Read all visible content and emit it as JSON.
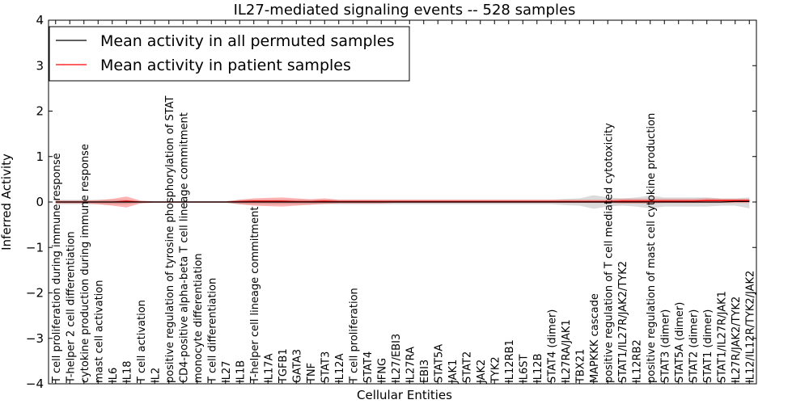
{
  "chart_data": {
    "type": "line",
    "title": "IL27-mediated signaling events -- 528 samples",
    "xlabel": "Cellular Entities",
    "ylabel": "Inferred Activity",
    "ylim": [
      -4,
      4
    ],
    "yticks": [
      -4,
      -3,
      -2,
      -1,
      0,
      1,
      2,
      3,
      4
    ],
    "legend_position": "upper-left",
    "categories": [
      "T cell proliferation during immune response",
      "T-helper 2 cell differentiation",
      "cytokine production during immune response",
      "mast cell activation",
      "IL6",
      "IL18",
      "T cell activation",
      "IL2",
      "positive regulation of tyrosine phosphorylation of STAT",
      "CD4-positive alpha-beta T cell lineage commitment",
      "monocyte differentiation",
      "T cell differentiation",
      "IL27",
      "IL1B",
      "T-helper cell lineage commitment",
      "IL17A",
      "TGFB1",
      "GATA3",
      "TNF",
      "STAT3",
      "IL12A",
      "T cell proliferation",
      "STAT4",
      "IFNG",
      "IL27/EBI3",
      "IL27RA",
      "EBI3",
      "STAT5A",
      "JAK1",
      "STAT2",
      "JAK2",
      "TYK2",
      "IL12RB1",
      "IL6ST",
      "IL12B",
      "STAT4 (dimer)",
      "IL27RA/JAK1",
      "TBX21",
      "MAPKKK cascade",
      "positive regulation of T cell mediated cytotoxicity",
      "STAT1/IL27R/JAK2/TYK2",
      "IL12RB2",
      "positive regulation of mast cell cytokine production",
      "STAT3 (dimer)",
      "STAT5A (dimer)",
      "STAT2 (dimer)",
      "STAT1 (dimer)",
      "STAT1/IL27R/JAK1",
      "IL27R/JAK2/TYK2",
      "IL12/IL12R/TYK2/JAK2"
    ],
    "series": [
      {
        "name": "Mean activity in all permuted samples",
        "color": "#000000",
        "values": [
          0,
          0,
          0,
          0,
          0,
          0,
          0,
          0,
          0,
          0,
          0,
          0,
          0,
          0,
          0,
          0,
          0,
          0,
          0,
          0,
          0,
          0,
          0,
          0,
          0,
          0,
          0,
          0,
          0,
          0,
          0,
          0,
          0,
          0,
          0,
          0,
          0,
          0,
          0,
          0,
          0,
          0,
          0,
          0,
          0,
          0,
          0,
          0,
          0.01,
          0.01
        ],
        "band_upper": [
          0.05,
          0.05,
          0.05,
          0.05,
          0.05,
          0.05,
          0.02,
          0.02,
          0.02,
          0.02,
          0.02,
          0.02,
          0.02,
          0.05,
          0.05,
          0.05,
          0.05,
          0.05,
          0.05,
          0.05,
          0.05,
          0.05,
          0.05,
          0.05,
          0.05,
          0.05,
          0.05,
          0.05,
          0.05,
          0.05,
          0.05,
          0.05,
          0.05,
          0.05,
          0.05,
          0.05,
          0.07,
          0.08,
          0.15,
          0.1,
          0.08,
          0.1,
          0.14,
          0.1,
          0.1,
          0.1,
          0.1,
          0.08,
          0.08,
          0.1
        ],
        "band_lower": [
          -0.05,
          -0.05,
          -0.05,
          -0.05,
          -0.05,
          -0.05,
          -0.02,
          -0.02,
          -0.02,
          -0.02,
          -0.02,
          -0.02,
          -0.02,
          -0.05,
          -0.05,
          -0.05,
          -0.05,
          -0.05,
          -0.05,
          -0.05,
          -0.05,
          -0.05,
          -0.05,
          -0.05,
          -0.05,
          -0.05,
          -0.05,
          -0.05,
          -0.05,
          -0.05,
          -0.05,
          -0.05,
          -0.05,
          -0.05,
          -0.05,
          -0.05,
          -0.07,
          -0.08,
          -0.15,
          -0.1,
          -0.08,
          -0.1,
          -0.14,
          -0.1,
          -0.1,
          -0.1,
          -0.1,
          -0.08,
          -0.08,
          -0.14
        ]
      },
      {
        "name": "Mean activity in patient samples",
        "color": "#ff0000",
        "values": [
          0,
          0,
          0,
          0,
          0,
          0.02,
          0,
          0,
          0,
          0,
          0,
          0,
          0,
          0.01,
          0.02,
          0.02,
          0.02,
          0.01,
          0.01,
          0.02,
          0.01,
          0.01,
          0.01,
          0.01,
          0.01,
          0.01,
          0.01,
          0.01,
          0.01,
          0.01,
          0.01,
          0.01,
          0.01,
          0.01,
          0.01,
          0.01,
          0.01,
          0.01,
          0.01,
          0.01,
          0.02,
          0.02,
          0.02,
          0.02,
          0.02,
          0.02,
          0.03,
          0.03,
          0.03,
          0.03
        ],
        "band_upper": [
          0.03,
          0.03,
          0.03,
          0.04,
          0.07,
          0.12,
          0.03,
          0.01,
          0.01,
          0.01,
          0.01,
          0.01,
          0.01,
          0.05,
          0.08,
          0.09,
          0.1,
          0.08,
          0.06,
          0.08,
          0.05,
          0.05,
          0.05,
          0.05,
          0.05,
          0.05,
          0.05,
          0.05,
          0.05,
          0.05,
          0.05,
          0.05,
          0.05,
          0.05,
          0.05,
          0.05,
          0.05,
          0.05,
          0.05,
          0.05,
          0.07,
          0.07,
          0.07,
          0.07,
          0.07,
          0.07,
          0.08,
          0.07,
          0.07,
          0.07
        ],
        "band_lower": [
          -0.03,
          -0.03,
          -0.03,
          -0.05,
          -0.08,
          -0.12,
          -0.03,
          -0.01,
          -0.01,
          -0.01,
          -0.01,
          -0.01,
          -0.01,
          -0.05,
          -0.08,
          -0.09,
          -0.1,
          -0.08,
          -0.06,
          -0.04,
          -0.03,
          -0.03,
          -0.03,
          -0.03,
          -0.02,
          -0.02,
          -0.02,
          -0.02,
          -0.02,
          -0.02,
          -0.02,
          -0.02,
          -0.02,
          -0.02,
          -0.02,
          -0.02,
          -0.02,
          -0.02,
          -0.02,
          -0.02,
          -0.03,
          -0.03,
          -0.03,
          -0.02,
          -0.02,
          -0.02,
          -0.02,
          -0.02,
          -0.02,
          -0.02
        ]
      }
    ]
  }
}
